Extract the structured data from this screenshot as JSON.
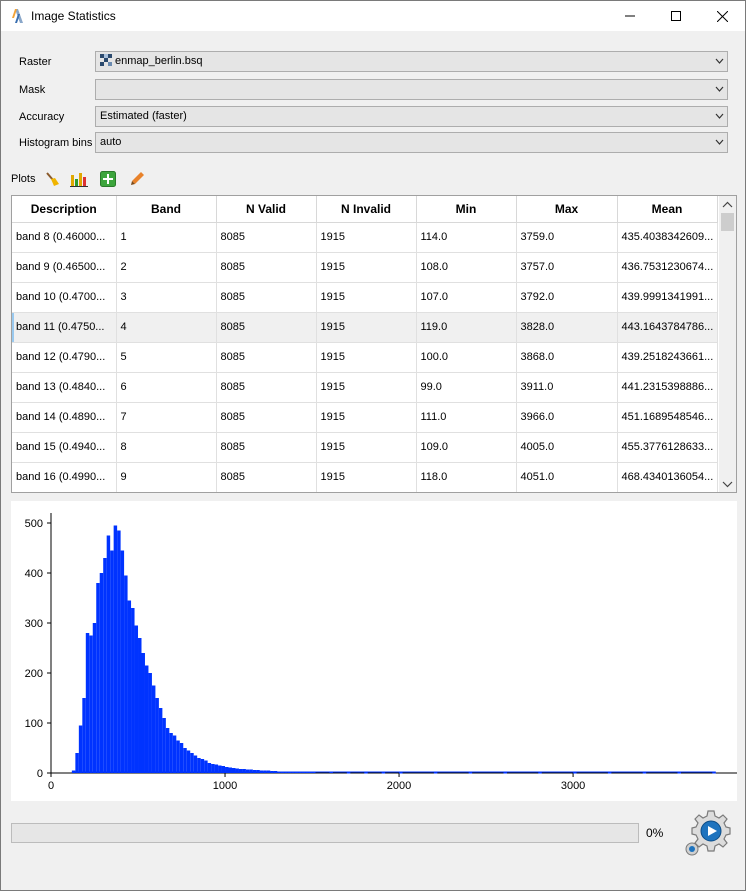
{
  "window": {
    "title": "Image Statistics"
  },
  "form": {
    "raster": {
      "label": "Raster",
      "value": "enmap_berlin.bsq"
    },
    "mask": {
      "label": "Mask",
      "value": ""
    },
    "accuracy": {
      "label": "Accuracy",
      "value": "Estimated (faster)"
    },
    "bins": {
      "label": "Histogram bins",
      "value": "auto"
    }
  },
  "toolbar": {
    "plots_label": "Plots"
  },
  "table": {
    "headers": [
      "Description",
      "Band",
      "N Valid",
      "N Invalid",
      "Min",
      "Max",
      "Mean"
    ],
    "rows": [
      [
        "band 8 (0.46000...",
        "1",
        "8085",
        "1915",
        "114.0",
        "3759.0",
        "435.4038342609..."
      ],
      [
        "band 9 (0.46500...",
        "2",
        "8085",
        "1915",
        "108.0",
        "3757.0",
        "436.7531230674..."
      ],
      [
        "band 10 (0.4700...",
        "3",
        "8085",
        "1915",
        "107.0",
        "3792.0",
        "439.9991341991..."
      ],
      [
        "band 11 (0.4750...",
        "4",
        "8085",
        "1915",
        "119.0",
        "3828.0",
        "443.1643784786..."
      ],
      [
        "band 12 (0.4790...",
        "5",
        "8085",
        "1915",
        "100.0",
        "3868.0",
        "439.2518243661..."
      ],
      [
        "band 13 (0.4840...",
        "6",
        "8085",
        "1915",
        "99.0",
        "3911.0",
        "441.2315398886..."
      ],
      [
        "band 14 (0.4890...",
        "7",
        "8085",
        "1915",
        "111.0",
        "3966.0",
        "451.1689548546..."
      ],
      [
        "band 15 (0.4940...",
        "8",
        "8085",
        "1915",
        "109.0",
        "4005.0",
        "455.3776128633..."
      ],
      [
        "band 16 (0.4990...",
        "9",
        "8085",
        "1915",
        "118.0",
        "4051.0",
        "468.4340136054..."
      ]
    ],
    "selected_row": 3
  },
  "chart_data": {
    "type": "bar",
    "title": "",
    "xlabel": "",
    "ylabel": "",
    "xlim": [
      0,
      3850
    ],
    "ylim": [
      0,
      520
    ],
    "xticks": [
      0,
      1000,
      2000,
      3000
    ],
    "yticks": [
      0,
      100,
      200,
      300,
      400,
      500
    ],
    "color": "#0033ff",
    "bin_width": 20,
    "x": [
      120,
      140,
      160,
      180,
      200,
      220,
      240,
      260,
      280,
      300,
      320,
      340,
      360,
      380,
      400,
      420,
      440,
      460,
      480,
      500,
      520,
      540,
      560,
      580,
      600,
      620,
      640,
      660,
      680,
      700,
      720,
      740,
      760,
      780,
      800,
      820,
      840,
      860,
      880,
      900,
      920,
      940,
      960,
      980,
      1000,
      1020,
      1040,
      1060,
      1080,
      1100,
      1120,
      1140,
      1160,
      1180,
      1200,
      1220,
      1240,
      1260,
      1280,
      1300,
      1320,
      1340,
      1360,
      1380,
      1400,
      1420,
      1440,
      1460,
      1480,
      1500,
      1600,
      1700,
      1800,
      1900,
      2000,
      2200,
      2400,
      2600,
      2800,
      3000,
      3200,
      3400,
      3600,
      3800
    ],
    "values": [
      5,
      40,
      95,
      150,
      280,
      275,
      300,
      380,
      400,
      430,
      475,
      445,
      495,
      485,
      445,
      395,
      345,
      330,
      295,
      270,
      240,
      215,
      200,
      175,
      150,
      130,
      110,
      90,
      80,
      75,
      65,
      60,
      50,
      45,
      40,
      35,
      30,
      28,
      25,
      20,
      18,
      17,
      15,
      14,
      12,
      11,
      10,
      9,
      8,
      8,
      7,
      7,
      6,
      6,
      5,
      5,
      5,
      4,
      4,
      3,
      3,
      3,
      3,
      2,
      2,
      2,
      2,
      2,
      2,
      2,
      2,
      1,
      1,
      1,
      1,
      1,
      1,
      1,
      1,
      1,
      1,
      1,
      1,
      1
    ]
  },
  "progress": {
    "value": 0,
    "text": "0%"
  },
  "icons": {
    "accent": "#1e73be"
  }
}
